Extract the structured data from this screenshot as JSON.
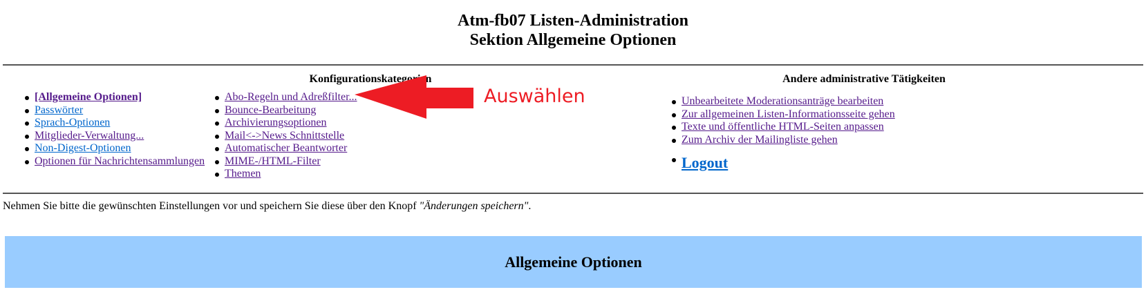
{
  "header": {
    "title": "Atm-fb07 Listen-Administration",
    "subtitle": "Sektion Allgemeine Optionen"
  },
  "config": {
    "heading": "Konfigurationskategorien",
    "left": [
      {
        "label": "[Allgemeine Optionen]",
        "current": true
      },
      {
        "label": "Passwörter"
      },
      {
        "label": "Sprach-Optionen"
      },
      {
        "label": "Mitglieder-Verwaltung..."
      },
      {
        "label": "Non-Digest-Optionen"
      },
      {
        "label": "Optionen für Nachrichtensammlungen"
      }
    ],
    "right": [
      {
        "label": "Abo-Regeln und Adreßfilter..."
      },
      {
        "label": "Bounce-Bearbeitung"
      },
      {
        "label": "Archivierungsoptionen"
      },
      {
        "label": "Mail<->News Schnittstelle"
      },
      {
        "label": "Automatischer Beantworter"
      },
      {
        "label": "MIME-/HTML-Filter"
      },
      {
        "label": "Themen"
      }
    ]
  },
  "other": {
    "heading": "Andere administrative Tätigkeiten",
    "items": [
      {
        "label": "Unbearbeitete Moderationsanträge bearbeiten"
      },
      {
        "label": "Zur allgemeinen Listen-Informationsseite gehen"
      },
      {
        "label": "Texte und öffentliche HTML-Seiten anpassen"
      },
      {
        "label": "Zum Archiv der Mailingliste gehen"
      }
    ],
    "logout": "Logout"
  },
  "annotation": {
    "label": "Auswählen",
    "color": "#ed1c24"
  },
  "note": {
    "text": "Nehmen Sie bitte die gewünschten Einstellungen vor und speichern Sie diese über den Knopf ",
    "emph": "\"Änderungen speichern\"",
    "end": "."
  },
  "section": {
    "title": "Allgemeine Optionen",
    "color": "#99ccff"
  }
}
